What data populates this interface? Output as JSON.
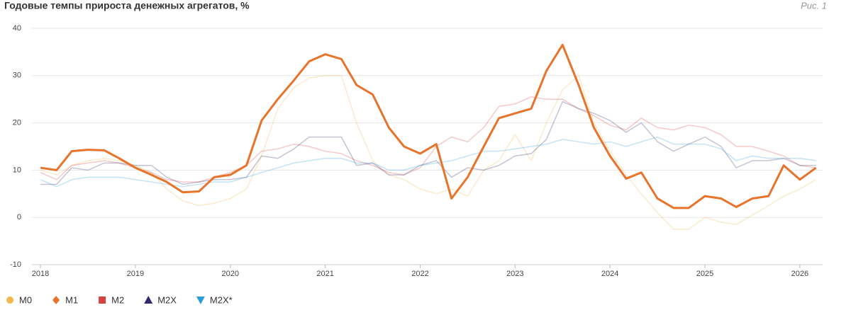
{
  "chart_data": {
    "type": "line",
    "title": "Годовые темпы прироста денежных агрегатов, %",
    "figure_label": "Рис. 1",
    "x": [
      2018,
      2018.17,
      2018.33,
      2018.5,
      2018.67,
      2018.83,
      2019,
      2019.17,
      2019.33,
      2019.5,
      2019.67,
      2019.83,
      2020,
      2020.17,
      2020.33,
      2020.5,
      2020.67,
      2020.83,
      2021,
      2021.17,
      2021.33,
      2021.5,
      2021.67,
      2021.83,
      2022,
      2022.17,
      2022.33,
      2022.5,
      2022.67,
      2022.83,
      2023,
      2023.17,
      2023.33,
      2023.5,
      2023.67,
      2023.83,
      2024,
      2024.17,
      2024.33,
      2024.5,
      2024.67,
      2024.83,
      2025,
      2025.17,
      2025.33,
      2025.5,
      2025.67,
      2025.83,
      2026,
      2026.17
    ],
    "xlim": [
      2017.91,
      2026.24
    ],
    "xticks": [
      2018,
      2019,
      2020,
      2021,
      2022,
      2023,
      2024,
      2025,
      2026
    ],
    "ylim": [
      -10,
      40
    ],
    "yticks": [
      -10,
      0,
      10,
      20,
      30,
      40
    ],
    "grid": true,
    "series": [
      {
        "name": "M0",
        "color": "#f2b84b",
        "marker": "circle",
        "values": [
          10,
          9,
          11,
          12,
          12.5,
          12,
          11,
          9.5,
          6,
          3.5,
          2.5,
          3,
          4,
          6,
          13,
          23,
          27.5,
          29.5,
          30,
          30,
          20,
          12,
          9,
          8,
          6,
          5,
          6,
          4.5,
          10,
          12,
          17.5,
          12,
          20,
          27,
          30,
          20,
          14,
          9,
          5,
          1,
          -2.5,
          -2.5,
          0,
          -1,
          -1.5,
          0.5,
          2.5,
          4.5,
          6,
          8
        ]
      },
      {
        "name": "M1",
        "color": "#e8732a",
        "marker": "diamond",
        "emphasized": true,
        "values": [
          10.5,
          10,
          14,
          14.3,
          14.2,
          12.5,
          10.5,
          9,
          7.5,
          5.3,
          5.5,
          8.5,
          9,
          11,
          20.5,
          25,
          29,
          33,
          34.5,
          33.5,
          28,
          26,
          19,
          15,
          13.5,
          15.5,
          4,
          8.5,
          15,
          21,
          22,
          23,
          31,
          36.5,
          28,
          19,
          13,
          8.2,
          9.5,
          4,
          2,
          2,
          4.5,
          4,
          2.2,
          4,
          4.5,
          11,
          8,
          10.5
        ]
      },
      {
        "name": "M2",
        "color": "#d94040",
        "marker": "square",
        "values": [
          9.5,
          8,
          11,
          11.5,
          12,
          11.5,
          10.5,
          9.5,
          8,
          7.5,
          7.5,
          8.5,
          9.5,
          11,
          14,
          14.5,
          15.5,
          15,
          14,
          13.5,
          12,
          11,
          9.5,
          9,
          10.5,
          15,
          17,
          16,
          19,
          23.5,
          24,
          25.5,
          25,
          25,
          23,
          21.5,
          19.5,
          18.5,
          21,
          19,
          18.5,
          19.5,
          19,
          17.5,
          15,
          15,
          14,
          13,
          11,
          10.5
        ]
      },
      {
        "name": "M2X",
        "color": "#2e2a6b",
        "marker": "triangle-up",
        "values": [
          7,
          7,
          10.5,
          10,
          11.5,
          11.5,
          11,
          11,
          8.5,
          7,
          7.5,
          8,
          8,
          8.5,
          13,
          12.5,
          14.5,
          17,
          17,
          17,
          11,
          11.5,
          9,
          9,
          11,
          12,
          8.5,
          10.5,
          10,
          11,
          13,
          13.5,
          16.5,
          24.5,
          23,
          22,
          20.5,
          18,
          20,
          16,
          14,
          15.5,
          17,
          15,
          10.5,
          12,
          12,
          12.5,
          11,
          11
        ]
      },
      {
        "name": "M2X*",
        "color": "#2a9fd6",
        "marker": "triangle-down",
        "values": [
          8,
          6.5,
          8,
          8.5,
          8.5,
          8.5,
          8,
          7.5,
          7,
          6.5,
          7,
          7.5,
          7.5,
          8.5,
          9.5,
          10.5,
          11.5,
          12,
          12.5,
          12.5,
          11.5,
          11.5,
          10,
          10,
          11,
          11.5,
          12,
          13,
          14,
          14,
          14.5,
          15,
          15.5,
          16.5,
          16,
          15.5,
          16,
          15,
          16,
          17,
          15.5,
          15.5,
          15.5,
          14.5,
          12,
          13,
          12.5,
          12.5,
          12.5,
          12
        ]
      }
    ]
  }
}
